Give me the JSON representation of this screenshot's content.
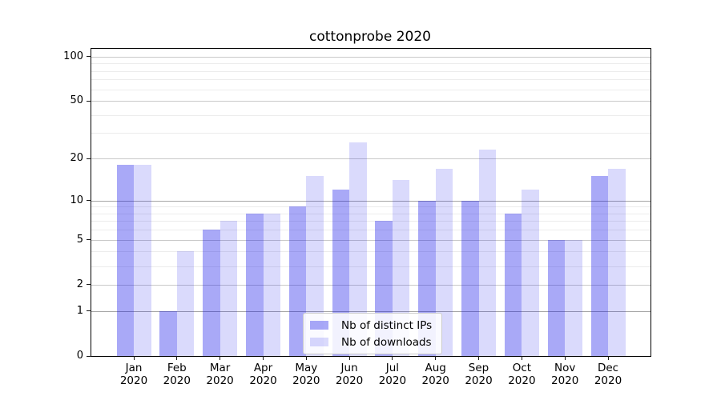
{
  "title": "cottonprobe 2020",
  "chart_data": {
    "type": "bar",
    "title": "cottonprobe 2020",
    "categories": [
      "Jan 2020",
      "Feb 2020",
      "Mar 2020",
      "Apr 2020",
      "May 2020",
      "Jun 2020",
      "Jul 2020",
      "Aug 2020",
      "Sep 2020",
      "Oct 2020",
      "Nov 2020",
      "Dec 2020"
    ],
    "category_line1": [
      "Jan",
      "Feb",
      "Mar",
      "Apr",
      "May",
      "Jun",
      "Jul",
      "Aug",
      "Sep",
      "Oct",
      "Nov",
      "Dec"
    ],
    "category_line2": "2020",
    "series": [
      {
        "name": "Nb of distinct IPs",
        "color": "rgba(8,8,232,0.35)",
        "values": [
          18,
          1,
          6,
          8,
          9,
          12,
          7,
          10,
          10,
          8,
          5,
          15
        ]
      },
      {
        "name": "Nb of downloads",
        "color": "rgba(8,8,232,0.15)",
        "values": [
          18,
          4,
          7,
          8,
          15,
          26,
          14,
          17,
          23,
          12,
          5,
          17
        ]
      }
    ],
    "yscale": "log1p",
    "ylim": [
      0,
      113
    ],
    "yticks": [
      0,
      1,
      2,
      5,
      10,
      20,
      50,
      100
    ],
    "yticks_minor": [
      3,
      4,
      6,
      7,
      8,
      9,
      30,
      40,
      60,
      70,
      80,
      90
    ],
    "grid_emphasis_values": [
      1,
      10
    ],
    "grid": true,
    "legend_position": "lower center"
  },
  "colors": {
    "bar_distinct_ips": "rgba(8,8,232,0.35)",
    "bar_downloads": "rgba(8,8,232,0.15)",
    "grid_major": "#c9c9c9",
    "grid_emphasis": "#a6a6a6",
    "grid_minor": "#ececec",
    "axis": "#000000"
  }
}
